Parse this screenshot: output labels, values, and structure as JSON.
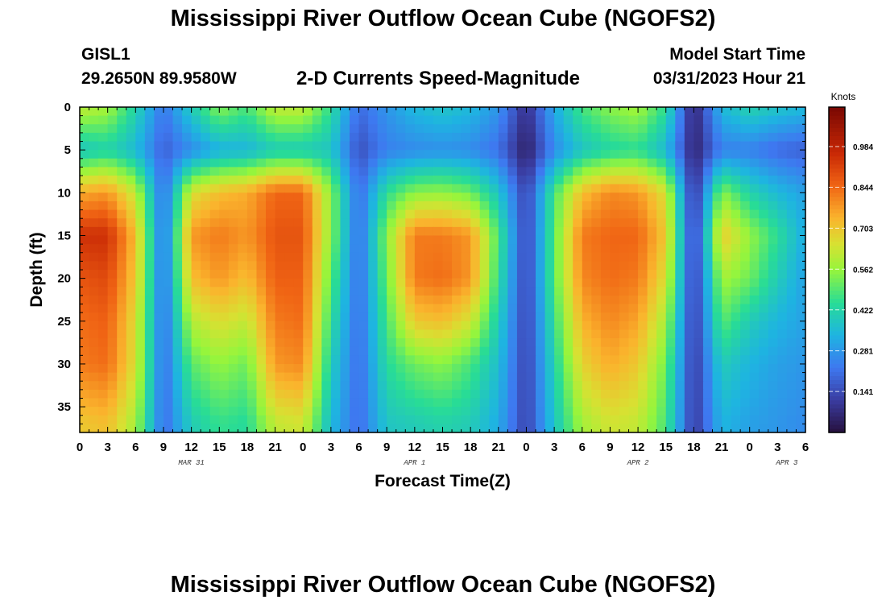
{
  "page": {
    "title_top": "Mississippi River Outflow Ocean Cube (NGOFS2)",
    "title_bottom": "Mississippi River Outflow Ocean Cube (NGOFS2)",
    "station_id": "GISL1",
    "station_coords": "29.2650N  89.9580W",
    "plot_title": "2-D Currents Speed-Magnitude",
    "model_start_label": "Model Start Time",
    "model_start_value": "03/31/2023 Hour 21"
  },
  "chart_data": {
    "type": "heatmap",
    "title": "2-D Currents Speed-Magnitude",
    "xlabel": "Forecast Time(Z)",
    "ylabel": "Depth (ft)",
    "colorbar_label": "Knots",
    "x_ticks": [
      "0",
      "3",
      "6",
      "9",
      "12",
      "15",
      "18",
      "21",
      "0",
      "3",
      "6",
      "9",
      "12",
      "15",
      "18",
      "21",
      "0",
      "3",
      "6",
      "9",
      "12",
      "15",
      "18",
      "21",
      "0",
      "3",
      "6"
    ],
    "date_labels": [
      {
        "label": "MAR 31",
        "hour": 12
      },
      {
        "label": "APR 1",
        "hour": 36
      },
      {
        "label": "APR 2",
        "hour": 60
      },
      {
        "label": "APR 3",
        "hour": 76
      }
    ],
    "y_ticks": [
      0,
      5,
      10,
      15,
      20,
      25,
      30,
      35
    ],
    "xlim_hours": [
      0,
      78
    ],
    "ylim_ft": [
      0,
      38
    ],
    "colorbar_ticks": [
      0.141,
      0.281,
      0.422,
      0.562,
      0.703,
      0.844,
      0.984
    ],
    "colorbar_range": [
      0.0,
      1.12
    ],
    "hours": [
      0,
      3,
      6,
      9,
      12,
      15,
      18,
      21,
      24,
      27,
      30,
      33,
      36,
      39,
      42,
      45,
      48,
      51,
      54,
      57,
      60,
      63,
      66,
      69,
      72,
      75,
      78
    ],
    "depths_ft": [
      0,
      5,
      10,
      15,
      20,
      25,
      30,
      37
    ],
    "speed_knots": [
      [
        0.62,
        0.58,
        0.42,
        0.22,
        0.4,
        0.55,
        0.48,
        0.62,
        0.62,
        0.45,
        0.2,
        0.28,
        0.35,
        0.38,
        0.35,
        0.28,
        0.08,
        0.32,
        0.48,
        0.55,
        0.58,
        0.45,
        0.05,
        0.35,
        0.42,
        0.38,
        0.35
      ],
      [
        0.38,
        0.42,
        0.35,
        0.18,
        0.26,
        0.33,
        0.34,
        0.4,
        0.4,
        0.38,
        0.15,
        0.24,
        0.26,
        0.27,
        0.26,
        0.21,
        0.04,
        0.26,
        0.38,
        0.43,
        0.45,
        0.35,
        0.05,
        0.24,
        0.24,
        0.2,
        0.18
      ],
      [
        0.75,
        0.78,
        0.62,
        0.2,
        0.65,
        0.72,
        0.75,
        0.85,
        0.85,
        0.55,
        0.2,
        0.45,
        0.55,
        0.56,
        0.52,
        0.38,
        0.12,
        0.48,
        0.72,
        0.8,
        0.78,
        0.65,
        0.08,
        0.55,
        0.42,
        0.35,
        0.3
      ],
      [
        0.95,
        0.95,
        0.72,
        0.2,
        0.78,
        0.82,
        0.78,
        0.88,
        0.88,
        0.55,
        0.2,
        0.55,
        0.82,
        0.82,
        0.78,
        0.48,
        0.12,
        0.5,
        0.82,
        0.85,
        0.85,
        0.7,
        0.1,
        0.7,
        0.56,
        0.45,
        0.32
      ],
      [
        0.88,
        0.9,
        0.7,
        0.2,
        0.72,
        0.78,
        0.72,
        0.86,
        0.86,
        0.5,
        0.2,
        0.52,
        0.82,
        0.84,
        0.78,
        0.45,
        0.12,
        0.5,
        0.8,
        0.84,
        0.82,
        0.65,
        0.1,
        0.58,
        0.52,
        0.4,
        0.3
      ],
      [
        0.84,
        0.86,
        0.66,
        0.2,
        0.6,
        0.66,
        0.62,
        0.82,
        0.84,
        0.45,
        0.2,
        0.48,
        0.7,
        0.72,
        0.64,
        0.4,
        0.12,
        0.46,
        0.74,
        0.8,
        0.76,
        0.58,
        0.1,
        0.5,
        0.4,
        0.34,
        0.3
      ],
      [
        0.82,
        0.84,
        0.65,
        0.2,
        0.5,
        0.56,
        0.52,
        0.78,
        0.8,
        0.4,
        0.2,
        0.44,
        0.52,
        0.55,
        0.48,
        0.36,
        0.12,
        0.42,
        0.68,
        0.75,
        0.7,
        0.52,
        0.1,
        0.4,
        0.34,
        0.3,
        0.28
      ],
      [
        0.7,
        0.72,
        0.58,
        0.2,
        0.4,
        0.46,
        0.44,
        0.62,
        0.64,
        0.35,
        0.2,
        0.38,
        0.4,
        0.42,
        0.4,
        0.32,
        0.12,
        0.38,
        0.58,
        0.64,
        0.62,
        0.48,
        0.1,
        0.34,
        0.3,
        0.28,
        0.26
      ]
    ]
  }
}
